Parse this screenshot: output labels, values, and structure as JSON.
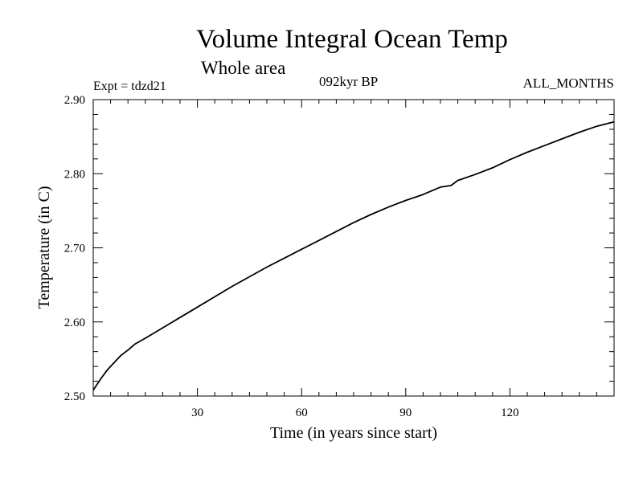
{
  "header": {
    "title": "Volume Integral Ocean Temp",
    "subtitle": "Whole area",
    "experiment": "Expt = tdzd21",
    "period": "092kyr BP",
    "months": "ALL_MONTHS"
  },
  "colors": {
    "line": "#000000",
    "background": "#ffffff"
  },
  "chart_data": {
    "type": "line",
    "title": "Volume Integral Ocean Temp",
    "xlabel": "Time (in years since start)",
    "ylabel": "Temperature (in C)",
    "xlim": [
      0,
      150
    ],
    "ylim": [
      2.5,
      2.9
    ],
    "x_ticks": [
      30,
      60,
      90,
      120
    ],
    "x_tick_labels": [
      "30",
      "60",
      "90",
      "120"
    ],
    "y_ticks": [
      2.5,
      2.6,
      2.7,
      2.8,
      2.9
    ],
    "y_tick_labels": [
      "2.50",
      "2.60",
      "2.70",
      "2.80",
      "2.90"
    ],
    "grid": false,
    "series": [
      {
        "name": "Volume integral ocean temperature",
        "x": [
          0,
          2,
          4,
          6,
          8,
          10,
          12,
          15,
          20,
          25,
          30,
          35,
          40,
          45,
          50,
          55,
          60,
          65,
          70,
          75,
          80,
          85,
          90,
          95,
          100,
          103,
          105,
          110,
          115,
          120,
          125,
          130,
          135,
          140,
          145,
          150
        ],
        "y": [
          2.508,
          2.522,
          2.535,
          2.545,
          2.555,
          2.562,
          2.57,
          2.578,
          2.592,
          2.606,
          2.62,
          2.634,
          2.648,
          2.661,
          2.674,
          2.686,
          2.698,
          2.71,
          2.722,
          2.734,
          2.745,
          2.755,
          2.764,
          2.772,
          2.782,
          2.784,
          2.791,
          2.799,
          2.808,
          2.819,
          2.829,
          2.838,
          2.847,
          2.856,
          2.864,
          2.87
        ]
      }
    ]
  }
}
